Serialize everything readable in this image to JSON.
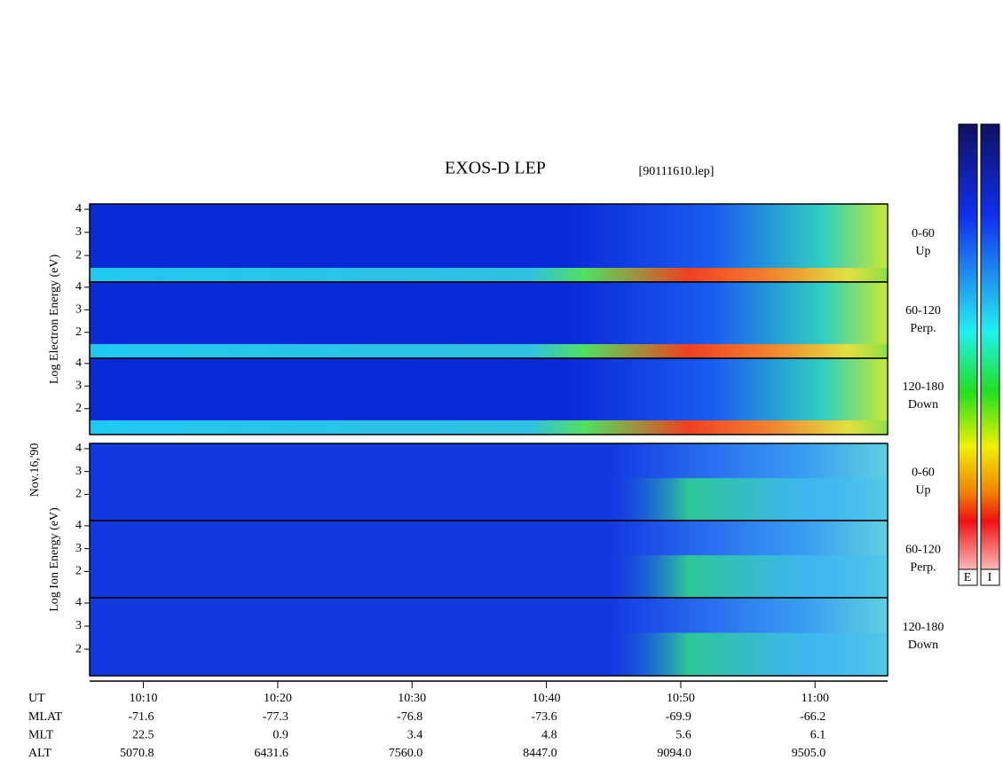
{
  "chart_data": {
    "type": "spectrogram",
    "title": "EXOS-D LEP",
    "subtitle": "[90111610.lep]",
    "date": "Nov.16,'90",
    "x_label": "UT",
    "xlim": [
      606,
      665.4
    ],
    "xticks": [
      {
        "value": 610,
        "label": "10:10"
      },
      {
        "value": 620,
        "label": "10:20"
      },
      {
        "value": 630,
        "label": "10:30"
      },
      {
        "value": 640,
        "label": "10:40"
      },
      {
        "value": 650,
        "label": "10:50"
      },
      {
        "value": 660,
        "label": "11:00"
      }
    ],
    "ylim": [
      0.85,
      4.23
    ],
    "yticks": [
      2,
      3,
      4
    ],
    "groups": [
      {
        "ylabel": "Log Electron Energy (eV)",
        "panels": [
          {
            "angle": "0-60",
            "direction": "Up"
          },
          {
            "angle": "60-120",
            "direction": "Perp."
          },
          {
            "angle": "120-180",
            "direction": "Down"
          }
        ]
      },
      {
        "ylabel": "Log Ion Energy (eV)",
        "panels": [
          {
            "angle": "0-60",
            "direction": "Up"
          },
          {
            "angle": "60-120",
            "direction": "Perp."
          },
          {
            "angle": "120-180",
            "direction": "Down"
          }
        ]
      }
    ],
    "orbit_rows": [
      {
        "label": "MLAT",
        "values": [
          "-71.6",
          "-77.3",
          "-76.8",
          "-73.6",
          "-69.9",
          "-66.2"
        ]
      },
      {
        "label": "MLT",
        "values": [
          "22.5",
          "0.9",
          "3.4",
          "4.8",
          "5.6",
          "6.1"
        ]
      },
      {
        "label": "ALT",
        "values": [
          "5070.8",
          "6431.6",
          "7560.0",
          "8447.0",
          "9094.0",
          "9505.0"
        ]
      }
    ],
    "colorbar_labels": [
      "E",
      "I"
    ]
  }
}
